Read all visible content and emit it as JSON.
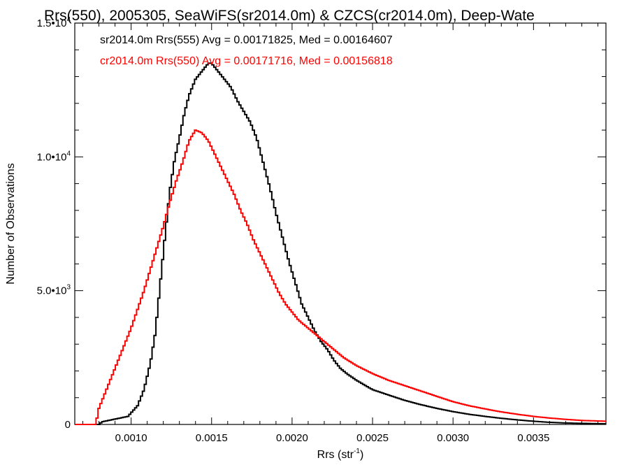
{
  "chart_data": {
    "type": "histogram-step",
    "title": "Rrs(550), 2005305, SeaWiFS(sr2014.0m) & CZCS(cr2014.0m), Deep-Wate",
    "xlabel_main": "Rrs (str",
    "xlabel_sup": "-1",
    "xlabel_close": ")",
    "ylabel": "Number of Observations",
    "xlim": [
      0.00065,
      0.00395
    ],
    "ylim": [
      0,
      15000
    ],
    "x_ticks": [
      {
        "value": 0.001,
        "label": "0.0010"
      },
      {
        "value": 0.0015,
        "label": "0.0015"
      },
      {
        "value": 0.002,
        "label": "0.0020"
      },
      {
        "value": 0.0025,
        "label": "0.0025"
      },
      {
        "value": 0.003,
        "label": "0.0030"
      },
      {
        "value": 0.0035,
        "label": "0.0035"
      }
    ],
    "y_ticks": [
      {
        "value": 0,
        "base": "0",
        "exp": ""
      },
      {
        "value": 5000,
        "base": "5.0•10",
        "exp": "3"
      },
      {
        "value": 10000,
        "base": "1.0•10",
        "exp": "4"
      },
      {
        "value": 15000,
        "base": "1.5•10",
        "exp": "4"
      }
    ],
    "series": [
      {
        "name": "sr2014.0m Rrs(555)",
        "legend": "sr2014.0m Rrs(555) Avg = 0.00171825, Med = 0.00164607",
        "color": "#000000",
        "points": [
          [
            0.00065,
            0
          ],
          [
            0.0008,
            0
          ],
          [
            0.00082,
            100
          ],
          [
            0.0009,
            200
          ],
          [
            0.00098,
            300
          ],
          [
            0.00104,
            700
          ],
          [
            0.00108,
            1300
          ],
          [
            0.00112,
            2300
          ],
          [
            0.00115,
            3400
          ],
          [
            0.00118,
            5200
          ],
          [
            0.00121,
            7000
          ],
          [
            0.00124,
            8700
          ],
          [
            0.00127,
            9900
          ],
          [
            0.0013,
            10700
          ],
          [
            0.00133,
            11600
          ],
          [
            0.00136,
            12300
          ],
          [
            0.0014,
            12900
          ],
          [
            0.00144,
            13200
          ],
          [
            0.00148,
            13500
          ],
          [
            0.0015,
            13500
          ],
          [
            0.00154,
            13200
          ],
          [
            0.00158,
            12900
          ],
          [
            0.00162,
            12600
          ],
          [
            0.00166,
            12100
          ],
          [
            0.0017,
            11700
          ],
          [
            0.00174,
            11300
          ],
          [
            0.00178,
            10700
          ],
          [
            0.00182,
            9800
          ],
          [
            0.00186,
            8900
          ],
          [
            0.0019,
            7900
          ],
          [
            0.00194,
            7000
          ],
          [
            0.00198,
            6100
          ],
          [
            0.00202,
            5300
          ],
          [
            0.00206,
            4500
          ],
          [
            0.0021,
            4000
          ],
          [
            0.00214,
            3500
          ],
          [
            0.00218,
            3100
          ],
          [
            0.00222,
            2800
          ],
          [
            0.00226,
            2400
          ],
          [
            0.0023,
            2100
          ],
          [
            0.00234,
            1900
          ],
          [
            0.0024,
            1650
          ],
          [
            0.0025,
            1300
          ],
          [
            0.0026,
            1100
          ],
          [
            0.0027,
            900
          ],
          [
            0.0028,
            740
          ],
          [
            0.0029,
            600
          ],
          [
            0.003,
            480
          ],
          [
            0.0031,
            380
          ],
          [
            0.0032,
            300
          ],
          [
            0.0033,
            230
          ],
          [
            0.0034,
            170
          ],
          [
            0.0035,
            120
          ],
          [
            0.0036,
            80
          ],
          [
            0.0037,
            55
          ],
          [
            0.0038,
            40
          ],
          [
            0.00395,
            25
          ]
        ]
      },
      {
        "name": "cr2014.0m Rrs(550)",
        "legend": "cr2014.0m Rrs(550) Avg = 0.00171716, Med = 0.00156818",
        "color": "#ff0000",
        "points": [
          [
            0.00065,
            0
          ],
          [
            0.00078,
            0
          ],
          [
            0.0008,
            600
          ],
          [
            0.00084,
            1200
          ],
          [
            0.00088,
            1800
          ],
          [
            0.00092,
            2400
          ],
          [
            0.00096,
            3000
          ],
          [
            0.001,
            3600
          ],
          [
            0.00104,
            4300
          ],
          [
            0.00108,
            5000
          ],
          [
            0.00112,
            5800
          ],
          [
            0.00116,
            6600
          ],
          [
            0.0012,
            7400
          ],
          [
            0.00124,
            8300
          ],
          [
            0.00128,
            9100
          ],
          [
            0.00132,
            9800
          ],
          [
            0.00136,
            10600
          ],
          [
            0.0014,
            11000
          ],
          [
            0.00144,
            10900
          ],
          [
            0.00148,
            10600
          ],
          [
            0.00152,
            10100
          ],
          [
            0.00156,
            9600
          ],
          [
            0.0016,
            9100
          ],
          [
            0.00164,
            8600
          ],
          [
            0.00168,
            8000
          ],
          [
            0.00172,
            7500
          ],
          [
            0.00176,
            6900
          ],
          [
            0.0018,
            6400
          ],
          [
            0.00184,
            5900
          ],
          [
            0.00188,
            5400
          ],
          [
            0.00192,
            4900
          ],
          [
            0.00196,
            4500
          ],
          [
            0.002,
            4200
          ],
          [
            0.00204,
            3900
          ],
          [
            0.00208,
            3700
          ],
          [
            0.00212,
            3500
          ],
          [
            0.00216,
            3300
          ],
          [
            0.0022,
            3100
          ],
          [
            0.00224,
            2900
          ],
          [
            0.00228,
            2700
          ],
          [
            0.00232,
            2500
          ],
          [
            0.0024,
            2200
          ],
          [
            0.0025,
            1900
          ],
          [
            0.0026,
            1650
          ],
          [
            0.0027,
            1450
          ],
          [
            0.0028,
            1250
          ],
          [
            0.0029,
            1050
          ],
          [
            0.003,
            850
          ],
          [
            0.0031,
            700
          ],
          [
            0.0032,
            580
          ],
          [
            0.0033,
            470
          ],
          [
            0.0034,
            380
          ],
          [
            0.0035,
            300
          ],
          [
            0.0036,
            240
          ],
          [
            0.0037,
            190
          ],
          [
            0.0038,
            150
          ],
          [
            0.00395,
            120
          ]
        ]
      }
    ]
  }
}
